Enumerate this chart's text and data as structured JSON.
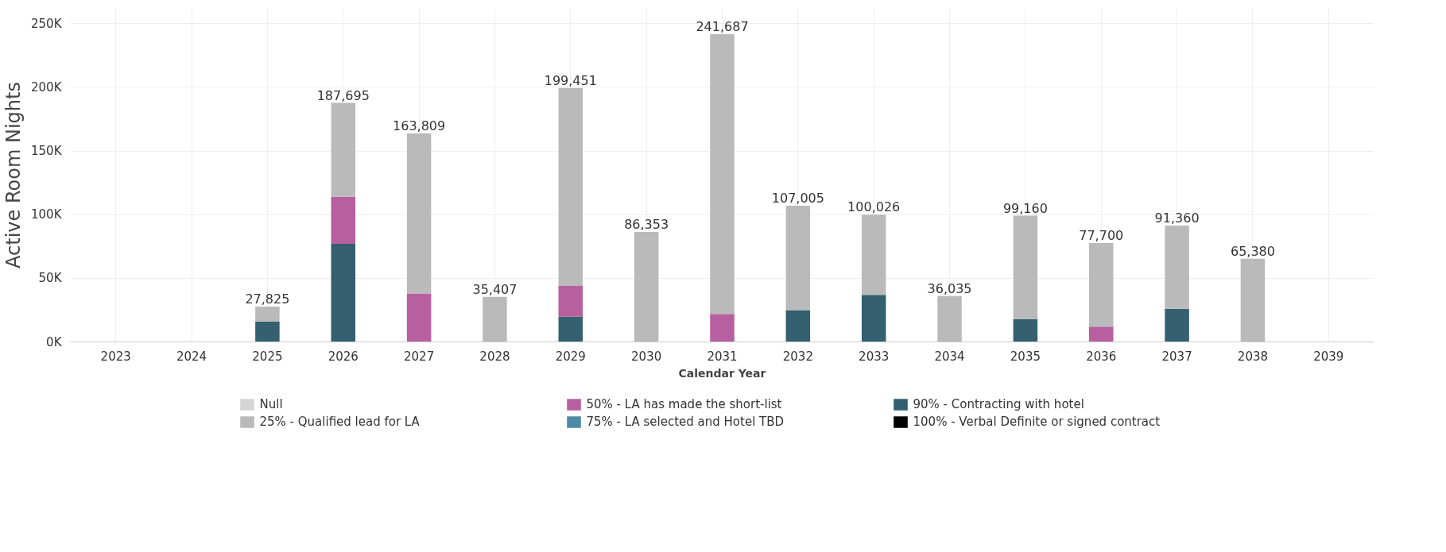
{
  "chart_data": {
    "type": "bar",
    "stacked": true,
    "xlabel": "Calendar Year",
    "ylabel": "Active Room Nights",
    "categories": [
      "2023",
      "2024",
      "2025",
      "2026",
      "2027",
      "2028",
      "2029",
      "2030",
      "2031",
      "2032",
      "2033",
      "2034",
      "2035",
      "2036",
      "2037",
      "2038",
      "2039"
    ],
    "series": [
      {
        "name": "100% - Verbal Definite or signed contract",
        "color": "#000000",
        "values": [
          null,
          null,
          null,
          null,
          null,
          null,
          null,
          null,
          null,
          null,
          null,
          null,
          null,
          null,
          null,
          null,
          null
        ]
      },
      {
        "name": "90% - Contracting with hotel",
        "color": "#34606f",
        "values": [
          null,
          null,
          16000,
          77000,
          null,
          null,
          20000,
          null,
          null,
          25000,
          37000,
          null,
          18000,
          null,
          26000,
          null,
          null
        ]
      },
      {
        "name": "75% - LA selected and Hotel TBD",
        "color": "#4e8aa6",
        "values": [
          null,
          null,
          null,
          null,
          null,
          null,
          null,
          null,
          null,
          null,
          null,
          null,
          null,
          null,
          null,
          null,
          null
        ]
      },
      {
        "name": "50% - LA has made the short-list",
        "color": "#b85fa0",
        "values": [
          null,
          null,
          null,
          37000,
          38000,
          null,
          24000,
          null,
          22000,
          null,
          null,
          null,
          null,
          12000,
          null,
          null,
          null
        ]
      },
      {
        "name": "25% - Qualified lead for LA",
        "color": "#bababa",
        "values": [
          null,
          null,
          11825,
          73695,
          125809,
          35407,
          155451,
          86353,
          219687,
          82005,
          63026,
          36035,
          81160,
          65700,
          65360,
          65380,
          null
        ]
      },
      {
        "name": "Null",
        "color": "#d4d4d4",
        "values": [
          null,
          null,
          null,
          null,
          null,
          null,
          null,
          null,
          null,
          null,
          null,
          null,
          null,
          null,
          null,
          null,
          null
        ]
      }
    ],
    "totals": [
      null,
      null,
      "27,825",
      "187,695",
      "163,809",
      "35,407",
      "199,451",
      "86,353",
      "241,687",
      "107,005",
      "100,026",
      "36,035",
      "99,160",
      "77,700",
      "91,360",
      "65,380",
      null
    ],
    "ylim": [
      0,
      262000
    ],
    "yticks": [
      {
        "value": 0,
        "label": "0K"
      },
      {
        "value": 50000,
        "label": "50K"
      },
      {
        "value": 100000,
        "label": "100K"
      },
      {
        "value": 150000,
        "label": "150K"
      },
      {
        "value": 200000,
        "label": "200K"
      },
      {
        "value": 250000,
        "label": "250K"
      }
    ],
    "grid": true,
    "legend": "bottom"
  }
}
